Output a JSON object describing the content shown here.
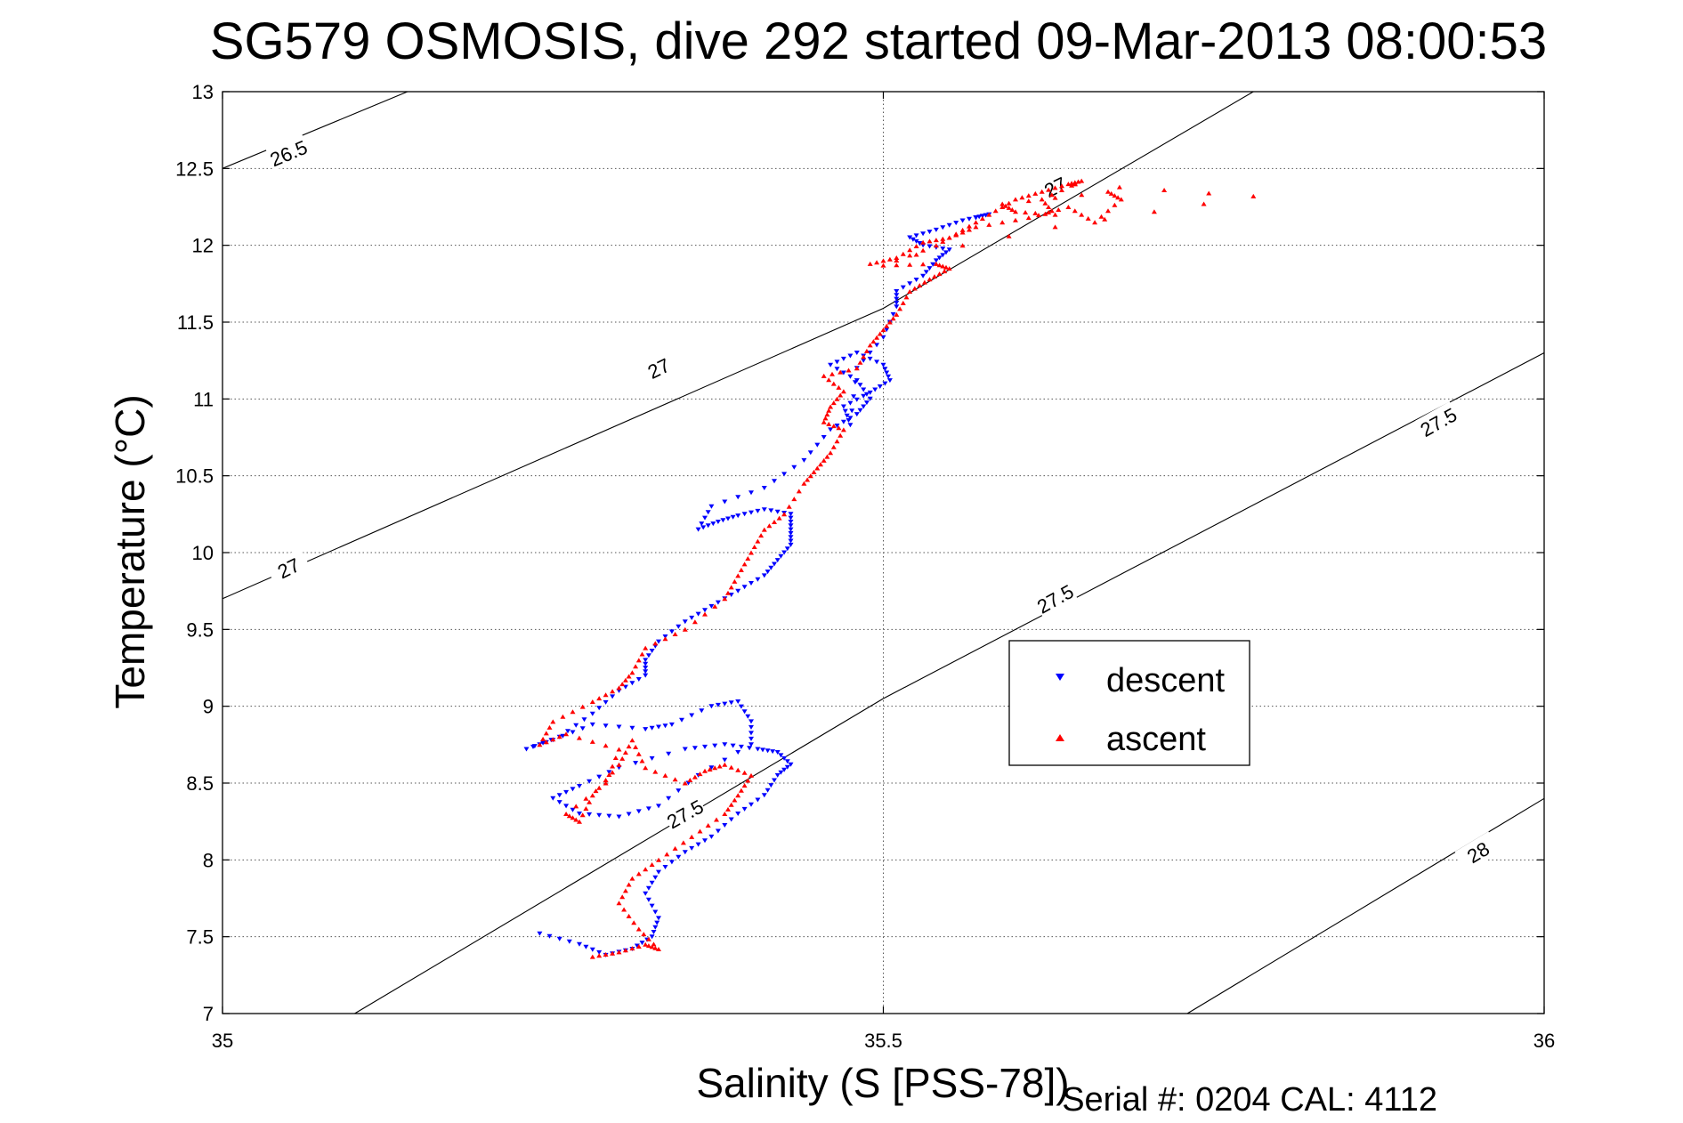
{
  "chart_data": {
    "type": "scatter",
    "title": "SG579 OSMOSIS, dive 292 started 09-Mar-2013 08:00:53",
    "xlabel": "Salinity (S [PSS-78])",
    "ylabel": "Temperature (°C)",
    "xlim": [
      35,
      36
    ],
    "ylim": [
      7,
      13
    ],
    "xticks": [
      "35",
      "35.5",
      "36"
    ],
    "yticks": [
      "7",
      "7.5",
      "8",
      "8.5",
      "9",
      "9.5",
      "10",
      "10.5",
      "11",
      "11.5",
      "12",
      "12.5",
      "13"
    ],
    "grid": true,
    "legend_position": "center-right",
    "footer": "Serial #: 0204  CAL: 4112",
    "colors": {
      "descent": "#0000ff",
      "ascent": "#ff0000",
      "contour": "#000000"
    },
    "density_contours": [
      {
        "label": "26.5",
        "points": [
          [
            35.0,
            12.5
          ],
          [
            35.14,
            13.0
          ]
        ],
        "label_positions": [
          [
            35.05,
            12.6
          ]
        ]
      },
      {
        "label": "27",
        "points": [
          [
            35.0,
            9.7
          ],
          [
            35.5,
            11.59
          ],
          [
            35.78,
            13.0
          ]
        ],
        "label_positions": [
          [
            35.05,
            9.9
          ],
          [
            35.33,
            11.2
          ],
          [
            35.63,
            12.38
          ]
        ]
      },
      {
        "label": "27.5",
        "points": [
          [
            35.1,
            7.0
          ],
          [
            35.5,
            9.05
          ],
          [
            36.0,
            11.3
          ]
        ],
        "label_positions": [
          [
            35.35,
            8.3
          ],
          [
            35.63,
            9.7
          ],
          [
            35.92,
            10.85
          ]
        ]
      },
      {
        "label": "28",
        "points": [
          [
            35.73,
            7.0
          ],
          [
            36.0,
            8.4
          ]
        ],
        "label_positions": [
          [
            35.95,
            8.05
          ]
        ]
      }
    ],
    "series": [
      {
        "name": "descent",
        "marker": "down-triangle",
        "points": [
          [
            35.24,
            7.52
          ],
          [
            35.27,
            7.45
          ],
          [
            35.29,
            7.38
          ],
          [
            35.31,
            7.42
          ],
          [
            35.325,
            7.5
          ],
          [
            35.33,
            7.62
          ],
          [
            35.32,
            7.78
          ],
          [
            35.33,
            7.92
          ],
          [
            35.35,
            8.05
          ],
          [
            35.37,
            8.15
          ],
          [
            35.39,
            8.3
          ],
          [
            35.41,
            8.42
          ],
          [
            35.42,
            8.55
          ],
          [
            35.43,
            8.62
          ],
          [
            35.42,
            8.7
          ],
          [
            35.405,
            8.72
          ],
          [
            35.38,
            8.75
          ],
          [
            35.35,
            8.72
          ],
          [
            35.3,
            8.6
          ],
          [
            35.27,
            8.48
          ],
          [
            35.25,
            8.4
          ],
          [
            35.27,
            8.3
          ],
          [
            35.3,
            8.28
          ],
          [
            35.33,
            8.35
          ],
          [
            35.36,
            8.55
          ],
          [
            35.4,
            8.75
          ],
          [
            35.4,
            8.9
          ],
          [
            35.39,
            9.03
          ],
          [
            35.37,
            9.0
          ],
          [
            35.34,
            8.88
          ],
          [
            35.32,
            8.85
          ],
          [
            35.28,
            8.88
          ],
          [
            35.25,
            8.78
          ],
          [
            35.23,
            8.72
          ],
          [
            35.255,
            8.8
          ],
          [
            35.28,
            8.95
          ],
          [
            35.3,
            9.1
          ],
          [
            35.32,
            9.2
          ],
          [
            35.32,
            9.3
          ],
          [
            35.33,
            9.42
          ],
          [
            35.35,
            9.55
          ],
          [
            35.37,
            9.65
          ],
          [
            35.39,
            9.75
          ],
          [
            35.41,
            9.85
          ],
          [
            35.42,
            9.95
          ],
          [
            35.43,
            10.05
          ],
          [
            35.43,
            10.15
          ],
          [
            35.43,
            10.25
          ],
          [
            35.41,
            10.28
          ],
          [
            35.39,
            10.24
          ],
          [
            35.375,
            10.2
          ],
          [
            35.36,
            10.15
          ],
          [
            35.37,
            10.3
          ],
          [
            35.41,
            10.42
          ],
          [
            35.44,
            10.6
          ],
          [
            35.46,
            10.8
          ],
          [
            35.48,
            10.9
          ],
          [
            35.49,
            11.0
          ],
          [
            35.48,
            11.12
          ],
          [
            35.46,
            11.22
          ],
          [
            35.48,
            11.3
          ],
          [
            35.5,
            11.22
          ],
          [
            35.505,
            11.12
          ],
          [
            35.49,
            11.04
          ],
          [
            35.47,
            10.95
          ],
          [
            35.475,
            10.83
          ],
          [
            35.48,
            11.2
          ],
          [
            35.5,
            11.4
          ],
          [
            35.51,
            11.6
          ],
          [
            35.51,
            11.7
          ],
          [
            35.53,
            11.8
          ],
          [
            35.54,
            11.9
          ],
          [
            35.55,
            11.97
          ],
          [
            35.53,
            12.0
          ],
          [
            35.52,
            12.05
          ],
          [
            35.54,
            12.1
          ],
          [
            35.56,
            12.16
          ],
          [
            35.58,
            12.2
          ],
          [
            35.57,
            12.18
          ]
        ]
      },
      {
        "name": "ascent",
        "marker": "up-triangle",
        "points": [
          [
            35.28,
            7.37
          ],
          [
            35.3,
            7.4
          ],
          [
            35.32,
            7.45
          ],
          [
            35.33,
            7.42
          ],
          [
            35.315,
            7.55
          ],
          [
            35.3,
            7.72
          ],
          [
            35.31,
            7.88
          ],
          [
            35.33,
            8.0
          ],
          [
            35.355,
            8.15
          ],
          [
            35.38,
            8.3
          ],
          [
            35.39,
            8.42
          ],
          [
            35.4,
            8.55
          ],
          [
            35.38,
            8.62
          ],
          [
            35.365,
            8.58
          ],
          [
            35.35,
            8.5
          ],
          [
            35.32,
            8.6
          ],
          [
            35.31,
            8.78
          ],
          [
            35.3,
            8.62
          ],
          [
            35.28,
            8.42
          ],
          [
            35.27,
            8.25
          ],
          [
            35.26,
            8.3
          ],
          [
            35.29,
            8.5
          ],
          [
            35.3,
            8.72
          ],
          [
            35.26,
            8.82
          ],
          [
            35.24,
            8.75
          ],
          [
            35.25,
            8.9
          ],
          [
            35.28,
            9.03
          ],
          [
            35.3,
            9.12
          ],
          [
            35.31,
            9.22
          ],
          [
            35.32,
            9.38
          ],
          [
            35.35,
            9.5
          ],
          [
            35.38,
            9.7
          ],
          [
            35.39,
            9.85
          ],
          [
            35.4,
            10.0
          ],
          [
            35.41,
            10.15
          ],
          [
            35.425,
            10.25
          ],
          [
            35.44,
            10.45
          ],
          [
            35.45,
            10.55
          ],
          [
            35.46,
            10.65
          ],
          [
            35.47,
            10.8
          ],
          [
            35.455,
            10.85
          ],
          [
            35.46,
            10.95
          ],
          [
            35.47,
            11.05
          ],
          [
            35.455,
            11.15
          ],
          [
            35.48,
            11.2
          ],
          [
            35.49,
            11.35
          ],
          [
            35.5,
            11.45
          ],
          [
            35.51,
            11.55
          ],
          [
            35.52,
            11.7
          ],
          [
            35.535,
            11.78
          ],
          [
            35.55,
            11.85
          ],
          [
            35.54,
            11.88
          ],
          [
            35.5,
            11.87
          ],
          [
            35.54,
            12.0
          ],
          [
            35.56,
            12.1
          ],
          [
            35.58,
            12.2
          ],
          [
            35.6,
            12.3
          ],
          [
            35.62,
            12.35
          ],
          [
            35.64,
            12.4
          ],
          [
            35.65,
            12.42
          ],
          [
            35.62,
            12.3
          ],
          [
            35.63,
            12.2
          ],
          [
            35.6,
            12.22
          ],
          [
            35.59,
            12.27
          ],
          [
            35.67,
            12.35
          ],
          [
            35.68,
            12.3
          ],
          [
            35.66,
            12.15
          ],
          [
            35.64,
            12.25
          ],
          [
            35.61,
            12.18
          ],
          [
            35.57,
            12.12
          ],
          [
            35.55,
            12.05
          ],
          [
            35.53,
            12.02
          ],
          [
            35.51,
            11.92
          ],
          [
            35.49,
            11.88
          ],
          [
            35.63,
            12.12
          ],
          [
            35.78,
            12.32
          ],
          [
            35.645,
            12.4
          ]
        ]
      }
    ]
  }
}
